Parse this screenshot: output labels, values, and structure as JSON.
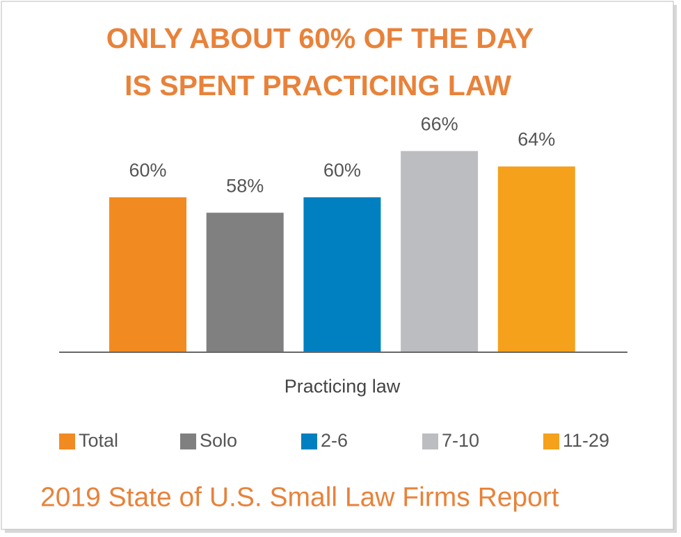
{
  "chart_data": {
    "type": "bar",
    "title": [
      "ONLY ABOUT 60% OF THE DAY",
      "IS SPENT PRACTICING LAW"
    ],
    "categories": [
      "Practicing law"
    ],
    "series": [
      {
        "name": "Total",
        "color": "#f28a22",
        "values": [
          60
        ],
        "value_labels": [
          "60%"
        ]
      },
      {
        "name": "Solo",
        "color": "#808080",
        "values": [
          58
        ],
        "value_labels": [
          "58%"
        ]
      },
      {
        "name": "2-6",
        "color": "#0080c0",
        "values": [
          60
        ],
        "value_labels": [
          "60%"
        ]
      },
      {
        "name": "7-10",
        "color": "#bcbdc0",
        "values": [
          66
        ],
        "value_labels": [
          "66%"
        ]
      },
      {
        "name": "11-29",
        "color": "#f5a11c",
        "values": [
          64
        ],
        "value_labels": [
          "64%"
        ]
      }
    ],
    "ylim": [
      40,
      70
    ],
    "caption": "2019 State of U.S. Small Law Firms Report"
  }
}
